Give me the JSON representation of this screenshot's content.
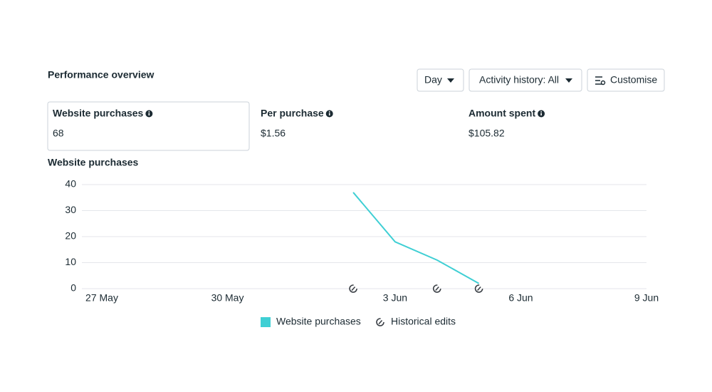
{
  "header": {
    "title": "Performance overview"
  },
  "controls": [
    "Day",
    "Activity history: All",
    "Customise"
  ],
  "metrics": [
    {
      "label": "Website purchases",
      "value": "68"
    },
    {
      "label": "Per purchase",
      "value": "$1.56"
    },
    {
      "label": "Amount spent",
      "value": "$105.82"
    }
  ],
  "chart_data": {
    "type": "line",
    "title": "Website purchases",
    "categories": [
      "27 May",
      null,
      null,
      "30 May",
      null,
      null,
      null,
      "3 Jun",
      null,
      null,
      "6 Jun",
      null,
      null,
      "9 Jun"
    ],
    "series": [
      {
        "name": "Website purchases",
        "color": "#3fcfd4",
        "values": [
          null,
          null,
          null,
          null,
          null,
          null,
          37,
          18,
          11,
          2,
          null,
          null,
          null,
          null
        ]
      },
      {
        "name": "Historical edits",
        "color": "#3a3f45",
        "marker": "edit",
        "values": [
          null,
          null,
          null,
          null,
          null,
          null,
          0,
          null,
          0,
          0,
          null,
          null,
          null,
          null
        ]
      }
    ],
    "ylim": [
      0,
      40
    ],
    "yticks": [
      0,
      10,
      20,
      30,
      40
    ],
    "grid": true
  }
}
